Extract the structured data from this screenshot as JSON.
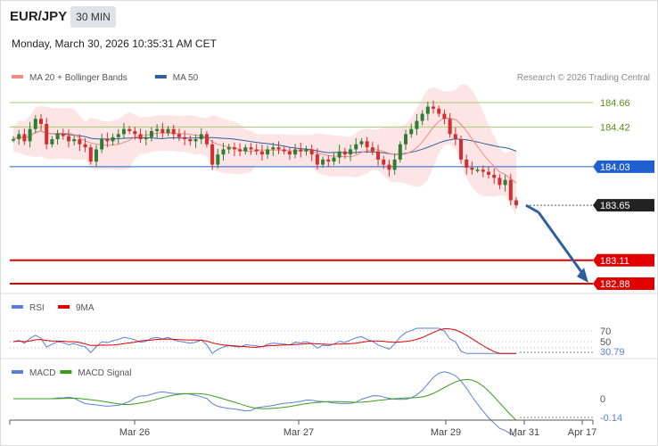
{
  "header": {
    "symbol": "EUR/JPY",
    "timeframe": "30 MIN",
    "datetime": "Monday, March 30, 2026 10:35:31 AM CET"
  },
  "legend": {
    "main": [
      {
        "label": "MA 20 + Bollinger Bands",
        "color": "#f28b82"
      },
      {
        "label": "MA 50",
        "color": "#2e5f9e"
      }
    ],
    "rsi": [
      {
        "label": "RSI",
        "color": "#5b7fd6"
      },
      {
        "label": "9MA",
        "color": "#e00000"
      }
    ],
    "macd": [
      {
        "label": "MACD",
        "color": "#5b7fd6"
      },
      {
        "label": "MACD Signal",
        "color": "#3a9c1a"
      }
    ]
  },
  "copyright": "Research © 2026 Trading Central",
  "colors": {
    "up": "#2e7d32",
    "down": "#d32f2f",
    "band_fill": "#fde0e0",
    "ma20": "#f28b82",
    "ma50": "#2e5f9e",
    "pivot": "#1f5fd0",
    "support": "#e00000",
    "resistance": "#a8cc6e",
    "arrow": "#2e5f9e",
    "current": "#222222"
  },
  "chart_data": {
    "type": "candlestick",
    "x_labels": [
      "Mar 26",
      "Mar 27",
      "Mar 29",
      "Mar 31",
      "Apr 17"
    ],
    "y_range": [
      182.8,
      184.8
    ],
    "levels": [
      {
        "value": 184.66,
        "label": "184.66",
        "kind": "resistance"
      },
      {
        "value": 184.42,
        "label": "184.42",
        "kind": "resistance"
      },
      {
        "value": 184.03,
        "label": "184.03",
        "kind": "pivot"
      },
      {
        "value": 183.65,
        "label": "183.65",
        "kind": "current"
      },
      {
        "value": 183.11,
        "label": "183.11",
        "kind": "support"
      },
      {
        "value": 182.88,
        "label": "182.88",
        "kind": "support"
      }
    ],
    "projection": {
      "from": 183.65,
      "to": 182.88
    },
    "close_path": [
      184.3,
      184.35,
      184.28,
      184.4,
      184.5,
      184.45,
      184.25,
      184.3,
      184.35,
      184.33,
      184.28,
      184.3,
      184.25,
      184.22,
      184.08,
      184.2,
      184.3,
      184.28,
      184.32,
      184.35,
      184.4,
      184.38,
      184.35,
      184.3,
      184.32,
      184.38,
      184.4,
      184.36,
      184.4,
      184.35,
      184.32,
      184.3,
      184.28,
      184.3,
      184.35,
      184.25,
      184.05,
      184.15,
      184.2,
      184.22,
      184.2,
      184.18,
      184.22,
      184.2,
      184.18,
      184.15,
      184.2,
      184.22,
      184.2,
      184.18,
      184.15,
      184.2,
      184.18,
      184.2,
      184.15,
      184.05,
      184.1,
      184.08,
      184.12,
      184.18,
      184.15,
      184.2,
      184.25,
      184.28,
      184.22,
      184.18,
      184.1,
      184.05,
      184.0,
      184.1,
      184.25,
      184.35,
      184.4,
      184.48,
      184.55,
      184.62,
      184.6,
      184.55,
      184.5,
      184.35,
      184.3,
      184.1,
      184.02,
      184.0,
      184.0,
      183.98,
      183.95,
      183.92,
      183.85,
      183.9,
      183.7,
      183.65
    ],
    "rsi": {
      "last": 30.79,
      "ticks": [
        70,
        50
      ],
      "last_label": "30.79"
    },
    "macd": {
      "last": -0.14,
      "ticks": [
        0
      ],
      "last_label": "-0.14",
      "zero_label": "0"
    }
  }
}
